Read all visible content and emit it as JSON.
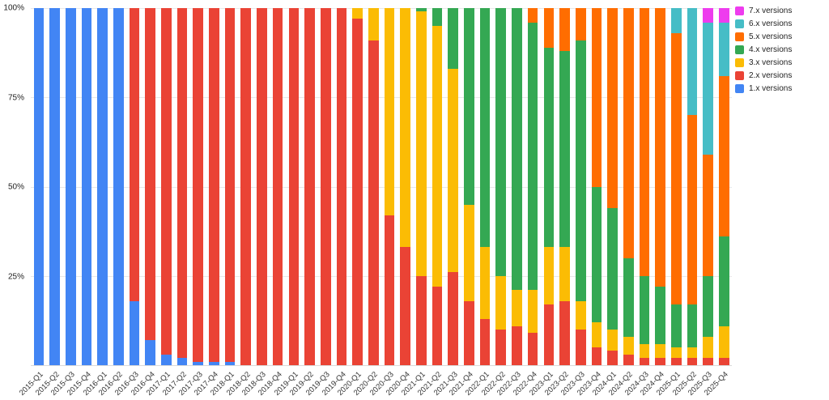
{
  "legend": {
    "items": [
      {
        "label": "7.x versions",
        "color": "#EE3CEE"
      },
      {
        "label": "6.x versions",
        "color": "#46BDC6"
      },
      {
        "label": "5.x versions",
        "color": "#FF6D01"
      },
      {
        "label": "4.x versions",
        "color": "#34A853"
      },
      {
        "label": "3.x versions",
        "color": "#FBBC04"
      },
      {
        "label": "2.x versions",
        "color": "#EA4335"
      },
      {
        "label": "1.x versions",
        "color": "#4285F4"
      }
    ]
  },
  "chart_data": {
    "type": "bar",
    "stacked": true,
    "stack_mode": "percent",
    "title": "",
    "xlabel": "",
    "ylabel": "",
    "grid": true,
    "legend_position": "top-right",
    "y_axis": {
      "ylim": [
        0,
        100
      ],
      "tick_values": [
        25,
        50,
        75,
        100
      ],
      "tick_labels": [
        "25%",
        "50%",
        "75%",
        "100%"
      ]
    },
    "categories": [
      "2015-Q1",
      "2015-Q2",
      "2015-Q3",
      "2015-Q4",
      "2016-Q1",
      "2016-Q2",
      "2016-Q3",
      "2016-Q4",
      "2017-Q1",
      "2017-Q2",
      "2017-Q3",
      "2017-Q4",
      "2018-Q1",
      "2018-Q2",
      "2018-Q3",
      "2018-Q4",
      "2019-Q1",
      "2019-Q2",
      "2019-Q3",
      "2019-Q4",
      "2020-Q1",
      "2020-Q2",
      "2020-Q3",
      "2020-Q4",
      "2021-Q1",
      "2021-Q2",
      "2021-Q3",
      "2021-Q4",
      "2022-Q1",
      "2022-Q2",
      "2022-Q3",
      "2022-Q4",
      "2023-Q1",
      "2023-Q2",
      "2023-Q3",
      "2023-Q4",
      "2024-Q1",
      "2024-Q2",
      "2024-Q3",
      "2024-Q4",
      "2025-Q1",
      "2025-Q2",
      "2025-Q3",
      "2025-Q4"
    ],
    "series": [
      {
        "name": "1.x versions",
        "color": "#4285F4",
        "values": [
          100,
          100,
          100,
          100,
          100,
          100,
          18,
          7,
          3,
          2,
          1,
          1,
          1,
          0,
          0,
          0,
          0,
          0,
          0,
          0,
          0,
          0,
          0,
          0,
          0,
          0,
          0,
          0,
          0,
          0,
          0,
          0,
          0,
          0,
          0,
          0,
          0,
          0,
          0,
          0,
          0,
          0,
          0,
          0
        ]
      },
      {
        "name": "2.x versions",
        "color": "#EA4335",
        "values": [
          0,
          0,
          0,
          0,
          0,
          0,
          82,
          93,
          97,
          98,
          99,
          99,
          99,
          100,
          100,
          100,
          100,
          100,
          100,
          100,
          97,
          91,
          42,
          33,
          25,
          22,
          26,
          18,
          13,
          10,
          11,
          9,
          17,
          18,
          10,
          5,
          4,
          3,
          2,
          2,
          2,
          2,
          2,
          2
        ]
      },
      {
        "name": "3.x versions",
        "color": "#FBBC04",
        "values": [
          0,
          0,
          0,
          0,
          0,
          0,
          0,
          0,
          0,
          0,
          0,
          0,
          0,
          0,
          0,
          0,
          0,
          0,
          0,
          0,
          3,
          9,
          58,
          67,
          74,
          73,
          57,
          27,
          20,
          15,
          10,
          12,
          16,
          15,
          8,
          7,
          6,
          5,
          4,
          4,
          3,
          3,
          6,
          9
        ]
      },
      {
        "name": "4.x versions",
        "color": "#34A853",
        "values": [
          0,
          0,
          0,
          0,
          0,
          0,
          0,
          0,
          0,
          0,
          0,
          0,
          0,
          0,
          0,
          0,
          0,
          0,
          0,
          0,
          0,
          0,
          0,
          0,
          1,
          5,
          17,
          55,
          67,
          75,
          79,
          75,
          56,
          55,
          73,
          38,
          34,
          22,
          19,
          16,
          12,
          12,
          17,
          25
        ]
      },
      {
        "name": "5.x versions",
        "color": "#FF6D01",
        "values": [
          0,
          0,
          0,
          0,
          0,
          0,
          0,
          0,
          0,
          0,
          0,
          0,
          0,
          0,
          0,
          0,
          0,
          0,
          0,
          0,
          0,
          0,
          0,
          0,
          0,
          0,
          0,
          0,
          0,
          0,
          0,
          4,
          11,
          12,
          9,
          50,
          56,
          70,
          75,
          78,
          76,
          53,
          34,
          45
        ]
      },
      {
        "name": "6.x versions",
        "color": "#46BDC6",
        "values": [
          0,
          0,
          0,
          0,
          0,
          0,
          0,
          0,
          0,
          0,
          0,
          0,
          0,
          0,
          0,
          0,
          0,
          0,
          0,
          0,
          0,
          0,
          0,
          0,
          0,
          0,
          0,
          0,
          0,
          0,
          0,
          0,
          0,
          0,
          0,
          0,
          0,
          0,
          0,
          0,
          7,
          30,
          37,
          15
        ]
      },
      {
        "name": "7.x versions",
        "color": "#EE3CEE",
        "values": [
          0,
          0,
          0,
          0,
          0,
          0,
          0,
          0,
          0,
          0,
          0,
          0,
          0,
          0,
          0,
          0,
          0,
          0,
          0,
          0,
          0,
          0,
          0,
          0,
          0,
          0,
          0,
          0,
          0,
          0,
          0,
          0,
          0,
          0,
          0,
          0,
          0,
          0,
          0,
          0,
          0,
          0,
          4,
          4
        ]
      }
    ]
  }
}
